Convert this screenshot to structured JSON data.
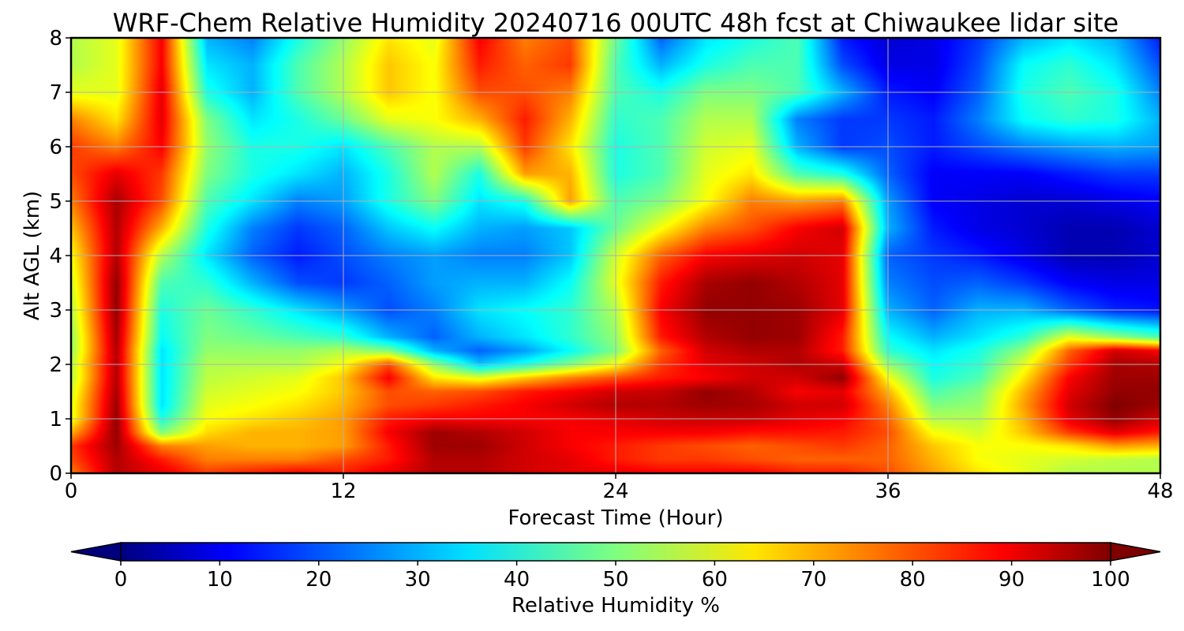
{
  "chart_data": {
    "type": "heatmap",
    "title": "WRF-Chem Relative Humidity 20240716 00UTC 48h fcst at Chiwaukee lidar site",
    "xlabel": "Forecast Time (Hour)",
    "ylabel": "Alt AGL (km)",
    "xlim": [
      0,
      48
    ],
    "ylim": [
      0,
      8
    ],
    "xticks": [
      0,
      12,
      24,
      36,
      48
    ],
    "yticks": [
      0,
      1,
      2,
      3,
      4,
      5,
      6,
      7,
      8
    ],
    "grid": true,
    "colormap": "jet",
    "colorbar": {
      "label": "Relative Humidity %",
      "ticks": [
        0,
        10,
        20,
        30,
        40,
        50,
        60,
        70,
        80,
        90,
        100
      ],
      "range": [
        0,
        100
      ],
      "extend": "both",
      "orientation": "horizontal"
    },
    "x": [
      0,
      2,
      4,
      6,
      8,
      10,
      12,
      14,
      16,
      18,
      20,
      22,
      24,
      26,
      28,
      30,
      32,
      34,
      36,
      38,
      40,
      42,
      44,
      46,
      48
    ],
    "y": [
      0,
      0.25,
      0.5,
      0.75,
      1.0,
      1.25,
      1.5,
      1.75,
      2.0,
      2.25,
      2.5,
      3.0,
      3.5,
      4.0,
      4.5,
      5.0,
      5.5,
      6.0,
      6.5,
      7.0,
      7.5,
      8.0
    ],
    "z": [
      [
        75,
        95,
        90,
        82,
        85,
        88,
        85,
        90,
        95,
        95,
        92,
        90,
        90,
        88,
        88,
        88,
        85,
        85,
        80,
        72,
        65,
        60,
        55,
        55,
        55
      ],
      [
        80,
        95,
        85,
        75,
        75,
        75,
        80,
        85,
        95,
        95,
        92,
        90,
        85,
        82,
        82,
        80,
        78,
        78,
        78,
        70,
        62,
        60,
        58,
        56,
        55
      ],
      [
        82,
        97,
        75,
        72,
        70,
        70,
        72,
        85,
        97,
        97,
        92,
        88,
        85,
        82,
        80,
        78,
        80,
        82,
        78,
        68,
        62,
        62,
        65,
        72,
        70
      ],
      [
        70,
        98,
        50,
        66,
        70,
        70,
        72,
        88,
        97,
        95,
        92,
        88,
        88,
        88,
        88,
        86,
        86,
        85,
        80,
        62,
        58,
        68,
        82,
        90,
        85
      ],
      [
        60,
        98,
        40,
        62,
        65,
        68,
        72,
        85,
        88,
        88,
        88,
        88,
        90,
        92,
        93,
        93,
        90,
        88,
        78,
        55,
        55,
        70,
        90,
        98,
        92
      ],
      [
        60,
        97,
        35,
        60,
        62,
        65,
        70,
        80,
        82,
        85,
        88,
        92,
        95,
        95,
        97,
        96,
        92,
        92,
        75,
        50,
        52,
        72,
        92,
        100,
        97
      ],
      [
        58,
        96,
        35,
        58,
        60,
        62,
        68,
        80,
        78,
        80,
        85,
        88,
        92,
        93,
        98,
        95,
        88,
        90,
        70,
        45,
        50,
        70,
        90,
        98,
        98
      ],
      [
        55,
        95,
        35,
        56,
        58,
        60,
        68,
        88,
        65,
        60,
        68,
        75,
        80,
        85,
        88,
        92,
        92,
        98,
        62,
        40,
        45,
        65,
        88,
        97,
        97
      ],
      [
        55,
        95,
        35,
        55,
        55,
        55,
        62,
        80,
        52,
        32,
        40,
        50,
        62,
        82,
        90,
        92,
        95,
        92,
        52,
        38,
        42,
        60,
        82,
        96,
        95
      ],
      [
        52,
        95,
        35,
        52,
        52,
        52,
        55,
        50,
        30,
        22,
        28,
        38,
        50,
        78,
        92,
        95,
        95,
        85,
        42,
        35,
        40,
        52,
        78,
        92,
        88
      ],
      [
        52,
        96,
        38,
        50,
        48,
        45,
        42,
        30,
        22,
        30,
        35,
        42,
        52,
        85,
        95,
        98,
        97,
        85,
        38,
        30,
        35,
        42,
        60,
        52,
        45
      ],
      [
        55,
        98,
        40,
        48,
        42,
        35,
        28,
        20,
        25,
        35,
        38,
        42,
        55,
        88,
        98,
        98,
        97,
        90,
        30,
        22,
        30,
        30,
        22,
        16,
        14
      ],
      [
        58,
        98,
        45,
        42,
        30,
        20,
        18,
        22,
        28,
        30,
        30,
        38,
        60,
        85,
        96,
        98,
        95,
        90,
        25,
        20,
        22,
        18,
        12,
        10,
        10
      ],
      [
        62,
        95,
        55,
        35,
        22,
        15,
        20,
        25,
        28,
        25,
        25,
        32,
        58,
        78,
        88,
        90,
        92,
        90,
        22,
        18,
        15,
        10,
        5,
        5,
        8
      ],
      [
        68,
        95,
        70,
        40,
        25,
        18,
        22,
        32,
        38,
        30,
        28,
        32,
        48,
        62,
        75,
        80,
        88,
        92,
        30,
        15,
        10,
        8,
        5,
        5,
        8
      ],
      [
        75,
        96,
        80,
        45,
        35,
        25,
        28,
        40,
        50,
        35,
        40,
        72,
        45,
        50,
        62,
        75,
        72,
        75,
        28,
        12,
        10,
        8,
        8,
        10,
        12
      ],
      [
        80,
        90,
        82,
        50,
        40,
        35,
        30,
        40,
        55,
        40,
        72,
        70,
        40,
        45,
        60,
        65,
        45,
        40,
        22,
        12,
        12,
        12,
        15,
        18,
        18
      ],
      [
        82,
        75,
        88,
        52,
        40,
        40,
        35,
        45,
        55,
        55,
        82,
        65,
        40,
        45,
        58,
        60,
        30,
        18,
        20,
        15,
        20,
        25,
        28,
        30,
        28
      ],
      [
        75,
        65,
        90,
        50,
        35,
        40,
        48,
        60,
        62,
        70,
        85,
        70,
        42,
        45,
        55,
        55,
        25,
        18,
        18,
        15,
        25,
        38,
        42,
        40,
        30
      ],
      [
        60,
        60,
        90,
        40,
        30,
        45,
        55,
        68,
        62,
        80,
        80,
        75,
        45,
        40,
        50,
        50,
        45,
        30,
        15,
        12,
        22,
        40,
        45,
        40,
        25
      ],
      [
        55,
        60,
        88,
        35,
        30,
        45,
        55,
        68,
        62,
        85,
        78,
        82,
        45,
        30,
        40,
        45,
        45,
        20,
        10,
        10,
        20,
        38,
        42,
        35,
        20
      ],
      [
        55,
        60,
        88,
        30,
        25,
        40,
        52,
        65,
        60,
        88,
        75,
        80,
        48,
        22,
        35,
        40,
        45,
        15,
        8,
        10,
        18,
        30,
        35,
        30,
        15
      ]
    ]
  }
}
